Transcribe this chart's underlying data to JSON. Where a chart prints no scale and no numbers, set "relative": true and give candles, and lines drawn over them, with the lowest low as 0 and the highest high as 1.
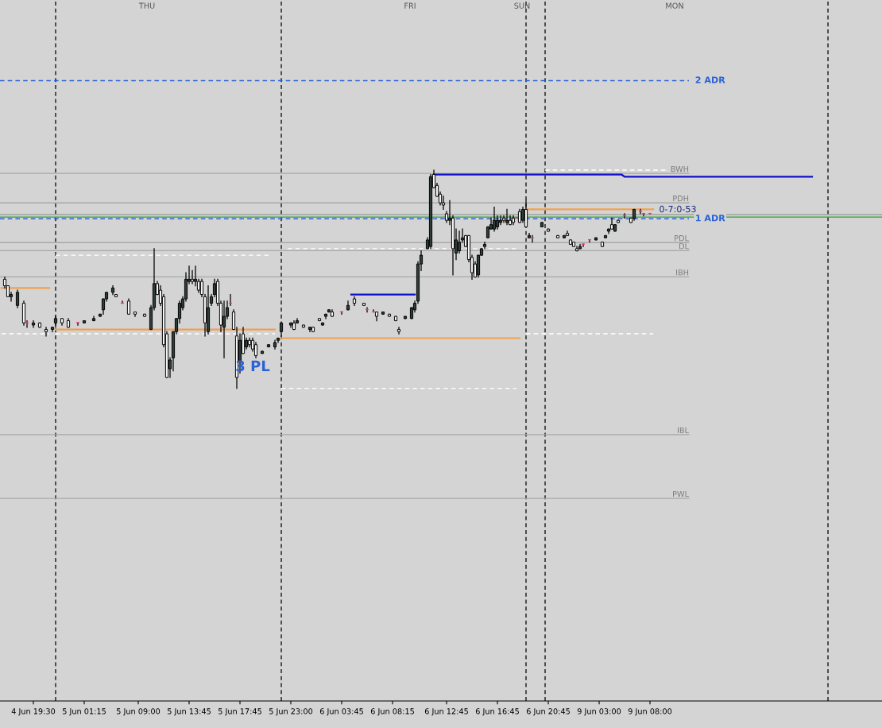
{
  "chart_data": {
    "type": "candlestick",
    "relative": true,
    "categories": [
      null,
      null,
      null,
      null,
      null,
      null,
      null,
      null,
      null,
      null,
      "4 Jun 19:30",
      null,
      null,
      null,
      null,
      null,
      null,
      null,
      null,
      null,
      null,
      null,
      null,
      null,
      null,
      null,
      "5 Jun 01:15",
      null,
      null,
      null,
      null,
      null,
      null,
      null,
      null,
      null,
      null,
      null,
      null,
      null,
      null,
      null,
      null,
      "5 Jun 09:00",
      null,
      null,
      null,
      null,
      null,
      null,
      null,
      null,
      null,
      null,
      null,
      null,
      null,
      null,
      null,
      "5 Jun 13:45",
      null,
      null,
      null,
      null,
      null,
      null,
      null,
      null,
      null,
      null,
      null,
      null,
      null,
      null,
      null,
      "5 Jun 17:45",
      null,
      null,
      null,
      null,
      null,
      null,
      null,
      null,
      null,
      null,
      null,
      null,
      null,
      null,
      null,
      "5 Jun 23:00",
      null,
      null,
      null,
      null,
      null,
      null,
      null,
      null,
      null,
      null,
      null,
      null,
      null,
      null,
      null,
      "6 Jun 03:45",
      null,
      null,
      null,
      null,
      null,
      null,
      null,
      null,
      null,
      null,
      null,
      null,
      null,
      null,
      null,
      "6 Jun 08:15",
      null,
      null,
      null,
      null,
      null,
      null,
      null,
      null,
      null,
      null,
      null,
      null,
      null,
      null,
      null,
      null,
      "6 Jun 12:45",
      null,
      null,
      null,
      null,
      null,
      null,
      null,
      null,
      null,
      null,
      null,
      null,
      null,
      null,
      null,
      "6 Jun 16:45",
      null,
      null,
      null,
      null,
      null,
      null,
      null,
      null,
      null,
      null,
      null,
      null,
      null,
      null,
      null,
      "6 Jun 20:45",
      null,
      null,
      null,
      null,
      null,
      null,
      null,
      null,
      null,
      null,
      null,
      null,
      null,
      null,
      null,
      "9 Jun 03:00",
      null,
      null,
      null,
      null,
      null,
      null,
      null,
      null,
      null,
      null,
      null,
      null,
      null,
      null,
      null,
      "9 Jun 08:00",
      null,
      null,
      null,
      null,
      null,
      null,
      null,
      null,
      null,
      null,
      null,
      null,
      null,
      null,
      null,
      null,
      null,
      null,
      null,
      null,
      null,
      null,
      null,
      null,
      null,
      null,
      null,
      null,
      null,
      null,
      null,
      null,
      null,
      null,
      null,
      null,
      null,
      null,
      null,
      null,
      null,
      null,
      null,
      null,
      null,
      null,
      null,
      null,
      null,
      null,
      null,
      null,
      null,
      null,
      null,
      null
    ],
    "ohlc": [
      null,
      [
        0.5,
        0.51,
        0.46,
        0.47
      ],
      [
        0.47,
        0.47,
        0.42,
        0.42
      ],
      [
        0.42,
        0.44,
        0.4,
        0.43
      ],
      null,
      [
        0.38,
        0.45,
        0.37,
        0.44
      ],
      null,
      [
        0.39,
        0.4,
        0.29,
        0.3
      ],
      [
        0.3,
        0.31,
        0.28,
        0.3
      ],
      null,
      [
        0.29,
        0.31,
        0.28,
        0.3
      ],
      null,
      [
        0.3,
        0.3,
        0.28,
        0.28
      ],
      null,
      [
        0.27,
        0.28,
        0.24,
        0.26
      ],
      null,
      [
        0.27,
        0.28,
        0.26,
        0.28
      ],
      [
        0.3,
        0.33,
        0.28,
        0.32
      ],
      null,
      [
        0.32,
        0.32,
        0.29,
        0.3
      ],
      null,
      [
        0.31,
        0.32,
        0.28,
        0.28
      ],
      null,
      null,
      [
        0.3,
        0.3,
        0.29,
        0.3
      ],
      null,
      [
        0.3,
        0.31,
        0.3,
        0.31
      ],
      null,
      null,
      [
        0.31,
        0.33,
        0.31,
        0.32
      ],
      null,
      [
        0.33,
        0.34,
        0.33,
        0.34
      ],
      [
        0.36,
        0.41,
        0.34,
        0.41
      ],
      [
        0.41,
        0.44,
        0.4,
        0.44
      ],
      null,
      [
        0.44,
        0.47,
        0.43,
        0.46
      ],
      [
        0.43,
        0.43,
        0.42,
        0.42
      ],
      null,
      [
        0.39,
        0.4,
        0.39,
        0.39
      ],
      null,
      [
        0.4,
        0.41,
        0.34,
        0.34
      ],
      null,
      [
        0.35,
        0.35,
        0.33,
        0.34
      ],
      null,
      null,
      [
        0.34,
        0.34,
        0.33,
        0.33
      ],
      null,
      [
        0.27,
        0.38,
        0.27,
        0.37
      ],
      [
        0.37,
        0.64,
        0.36,
        0.48
      ],
      [
        0.48,
        0.49,
        0.43,
        0.43
      ],
      [
        0.45,
        0.47,
        0.38,
        0.39
      ],
      [
        0.42,
        0.43,
        0.19,
        0.2
      ],
      [
        0.25,
        0.26,
        0.05,
        0.05
      ],
      [
        0.09,
        0.14,
        0.05,
        0.13
      ],
      [
        0.14,
        0.26,
        0.08,
        0.26
      ],
      [
        0.26,
        0.32,
        0.25,
        0.32
      ],
      [
        0.32,
        0.4,
        0.3,
        0.39
      ],
      [
        0.37,
        0.42,
        0.36,
        0.41
      ],
      [
        0.41,
        0.53,
        0.4,
        0.5
      ],
      [
        0.49,
        0.56,
        0.48,
        0.5
      ],
      [
        0.5,
        0.54,
        0.48,
        0.49
      ],
      [
        0.49,
        0.56,
        0.47,
        0.5
      ],
      [
        0.49,
        0.5,
        0.44,
        0.45
      ],
      [
        0.49,
        0.5,
        0.42,
        0.43
      ],
      [
        0.42,
        0.43,
        0.24,
        0.3
      ],
      [
        0.26,
        0.47,
        0.25,
        0.37
      ],
      [
        0.39,
        0.43,
        0.38,
        0.42
      ],
      [
        0.43,
        0.5,
        0.42,
        0.48
      ],
      [
        0.49,
        0.5,
        0.38,
        0.39
      ],
      [
        0.39,
        0.4,
        0.26,
        0.29
      ],
      [
        0.28,
        0.4,
        0.14,
        0.33
      ],
      [
        0.33,
        0.4,
        0.32,
        0.37
      ],
      [
        0.39,
        0.43,
        0.38,
        0.39
      ],
      [
        0.35,
        0.36,
        0.27,
        0.27
      ],
      [
        0.24,
        0.28,
        0.0,
        0.05
      ],
      [
        0.12,
        0.25,
        0.07,
        0.22
      ],
      [
        0.25,
        0.28,
        0.16,
        0.16
      ],
      [
        0.19,
        0.23,
        0.18,
        0.22
      ],
      [
        0.22,
        0.23,
        0.19,
        0.2
      ],
      [
        0.22,
        0.23,
        0.17,
        0.18
      ],
      [
        0.2,
        0.21,
        0.14,
        0.15
      ],
      null,
      [
        0.16,
        0.17,
        0.16,
        0.17
      ],
      null,
      [
        0.19,
        0.2,
        0.19,
        0.2
      ],
      null,
      [
        0.19,
        0.22,
        0.18,
        0.21
      ],
      [
        0.22,
        0.23,
        0.21,
        0.23
      ],
      [
        0.26,
        0.3,
        0.24,
        0.3
      ],
      null,
      null,
      [
        0.29,
        0.3,
        0.28,
        0.3
      ],
      [
        0.3,
        0.31,
        0.27,
        0.27
      ],
      [
        0.3,
        0.32,
        0.3,
        0.31
      ],
      null,
      [
        0.29,
        0.29,
        0.28,
        0.28
      ],
      null,
      [
        0.27,
        0.28,
        0.26,
        0.28
      ],
      [
        0.28,
        0.28,
        0.26,
        0.26
      ],
      null,
      [
        0.32,
        0.32,
        0.31,
        0.31
      ],
      [
        0.29,
        0.3,
        0.29,
        0.3
      ],
      [
        0.33,
        0.34,
        0.32,
        0.34
      ],
      [
        0.35,
        0.36,
        0.35,
        0.36
      ],
      [
        0.35,
        0.36,
        0.33,
        0.33
      ],
      null,
      null,
      [
        0.35,
        0.35,
        0.34,
        0.35
      ],
      null,
      [
        0.36,
        0.4,
        0.36,
        0.38
      ],
      null,
      [
        0.41,
        0.42,
        0.38,
        0.39
      ],
      null,
      null,
      [
        0.39,
        0.39,
        0.38,
        0.38
      ],
      [
        0.36,
        0.37,
        0.35,
        0.36
      ],
      null,
      [
        0.35,
        0.36,
        0.35,
        0.35
      ],
      [
        0.35,
        0.35,
        0.31,
        0.33
      ],
      null,
      [
        0.34,
        0.35,
        0.34,
        0.35
      ],
      null,
      [
        0.34,
        0.34,
        0.33,
        0.33
      ],
      null,
      [
        0.33,
        0.33,
        0.31,
        0.31
      ],
      [
        0.27,
        0.28,
        0.25,
        0.26
      ],
      null,
      [
        0.32,
        0.33,
        0.32,
        0.33
      ],
      null,
      [
        0.32,
        0.37,
        0.32,
        0.37
      ],
      [
        0.36,
        0.4,
        0.35,
        0.39
      ],
      [
        0.4,
        0.58,
        0.39,
        0.57
      ],
      [
        0.57,
        0.63,
        0.54,
        0.61
      ],
      null,
      [
        0.64,
        0.69,
        0.64,
        0.68
      ],
      [
        0.65,
        0.98,
        0.64,
        0.97
      ],
      [
        0.98,
        1.0,
        0.92,
        0.92
      ],
      [
        0.93,
        0.94,
        0.88,
        0.88
      ],
      [
        0.89,
        0.9,
        0.84,
        0.85
      ],
      [
        0.85,
        0.88,
        0.82,
        0.84
      ],
      [
        0.8,
        0.81,
        0.76,
        0.77
      ],
      [
        0.77,
        0.86,
        0.75,
        0.78
      ],
      [
        0.78,
        0.79,
        0.52,
        0.64
      ],
      [
        0.62,
        0.73,
        0.59,
        0.68
      ],
      [
        0.63,
        0.72,
        0.62,
        0.67
      ],
      [
        0.68,
        0.73,
        0.67,
        0.69
      ],
      [
        0.7,
        0.7,
        0.65,
        0.65
      ],
      [
        0.7,
        0.7,
        0.58,
        0.59
      ],
      [
        0.6,
        0.61,
        0.5,
        0.53
      ],
      [
        0.57,
        0.58,
        0.51,
        0.51
      ],
      [
        0.52,
        0.61,
        0.51,
        0.61
      ],
      [
        0.61,
        0.64,
        0.61,
        0.64
      ],
      [
        0.65,
        0.67,
        0.64,
        0.66
      ],
      [
        0.69,
        0.74,
        0.69,
        0.74
      ],
      [
        0.73,
        0.78,
        0.73,
        0.75
      ],
      [
        0.73,
        0.83,
        0.72,
        0.77
      ],
      [
        0.74,
        0.79,
        0.73,
        0.77
      ],
      [
        0.76,
        0.79,
        0.75,
        0.77
      ],
      [
        0.78,
        0.79,
        0.76,
        0.77
      ],
      [
        0.76,
        0.82,
        0.75,
        0.77
      ],
      [
        0.77,
        0.79,
        0.75,
        0.75
      ],
      [
        0.78,
        0.79,
        0.75,
        0.76
      ],
      [
        0.78,
        0.78,
        0.78,
        0.78
      ],
      [
        0.81,
        0.82,
        0.76,
        0.76
      ],
      [
        0.77,
        0.83,
        0.76,
        0.82
      ],
      [
        0.82,
        0.86,
        0.74,
        0.74
      ],
      [
        0.69,
        0.71,
        0.69,
        0.7
      ],
      [
        0.69,
        0.7,
        0.67,
        0.69
      ],
      null,
      null,
      [
        0.74,
        0.76,
        0.74,
        0.76
      ],
      null,
      [
        0.73,
        0.73,
        0.72,
        0.72
      ],
      null,
      null,
      [
        0.7,
        0.7,
        0.69,
        0.69
      ],
      null,
      [
        0.69,
        0.7,
        0.69,
        0.7
      ],
      [
        0.71,
        0.72,
        0.7,
        0.7
      ],
      [
        0.68,
        0.68,
        0.66,
        0.66
      ],
      [
        0.67,
        0.67,
        0.65,
        0.65
      ],
      [
        0.64,
        0.65,
        0.63,
        0.63
      ],
      [
        0.64,
        0.66,
        0.64,
        0.65
      ],
      [
        0.66,
        0.66,
        0.65,
        0.66
      ],
      null,
      [
        0.68,
        0.68,
        0.67,
        0.68
      ],
      null,
      [
        0.68,
        0.69,
        0.68,
        0.69
      ],
      null,
      [
        0.67,
        0.67,
        0.65,
        0.65
      ],
      [
        0.69,
        0.7,
        0.69,
        0.7
      ],
      [
        0.72,
        0.73,
        0.71,
        0.73
      ],
      [
        0.75,
        0.78,
        0.73,
        0.73
      ],
      [
        0.72,
        0.75,
        0.72,
        0.75
      ],
      [
        0.77,
        0.77,
        0.76,
        0.76
      ],
      null,
      [
        0.79,
        0.8,
        0.78,
        0.79
      ],
      null,
      [
        0.78,
        0.78,
        0.76,
        0.76
      ],
      [
        0.78,
        0.82,
        0.77,
        0.82
      ],
      null,
      [
        0.81,
        0.82,
        0.8,
        0.81
      ],
      [
        0.8,
        0.8,
        0.79,
        0.8
      ],
      null,
      [
        0.8,
        0.8,
        0.8,
        0.8
      ],
      null,
      null,
      null,
      null,
      null,
      null,
      null,
      null,
      null,
      null,
      null,
      null,
      null,
      null,
      null,
      null,
      null,
      null,
      null,
      null,
      null,
      null,
      null,
      null,
      null,
      null,
      null,
      null,
      null,
      null,
      null,
      null,
      null,
      null,
      null,
      null,
      null,
      null,
      null,
      null,
      null,
      null,
      null,
      null,
      null,
      null,
      null,
      null,
      null,
      null,
      null,
      null,
      null,
      null,
      null,
      null
    ],
    "colors": [
      null,
      "#f4f4f4",
      "#f4f4f4",
      "#2f3d36",
      null,
      "#2f3d36",
      null,
      "#f4f4f4",
      "#e0407a",
      null,
      "#2f3d36",
      null,
      "#f4f4f4",
      null,
      "#f4f4f4",
      null,
      "#2f3d36",
      "#2f3d36",
      null,
      "#f4f4f4",
      null,
      "#f4f4f4",
      null,
      null,
      "#e0407a",
      null,
      "#2f3d36",
      null,
      null,
      "#2f3d36",
      null,
      "#2f3d36",
      "#2f3d36",
      "#2f3d36",
      null,
      "#2f3d36",
      "#f4f4f4",
      null,
      "#e0407a",
      null,
      "#f4f4f4",
      null,
      "#f4f4f4",
      null,
      null,
      "#f4f4f4",
      null,
      "#2f3d36",
      "#2f3d36",
      "#f4f4f4",
      "#f4f4f4",
      "#f4f4f4",
      "#f4f4f4",
      "#2f3d36",
      "#2f3d36",
      "#2f3d36",
      "#2f3d36",
      "#2f3d36",
      "#2f3d36",
      "#2f3d36",
      "#f4f4f4",
      "#2f3d36",
      "#f4f4f4",
      "#f4f4f4",
      "#f4f4f4",
      "#2f3d36",
      "#2f3d36",
      "#2f3d36",
      "#f4f4f4",
      "#f4f4f4",
      "#2f3d36",
      "#2f3d36",
      "#e0407a",
      "#f4f4f4",
      "#f4f4f4",
      "#2f3d36",
      "#f4f4f4",
      "#2f3d36",
      "#f4f4f4",
      "#f4f4f4",
      "#f4f4f4",
      null,
      "#2f3d36",
      null,
      "#2f3d36",
      null,
      "#2f3d36",
      "#2f3d36",
      "#2f3d36",
      null,
      null,
      "#2f3d36",
      "#f4f4f4",
      "#2f3d36",
      null,
      "#f4f4f4",
      null,
      "#2f3d36",
      "#f4f4f4",
      null,
      "#f4f4f4",
      "#2f3d36",
      "#2f3d36",
      "#2f3d36",
      "#f4f4f4",
      null,
      null,
      "#e0407a",
      null,
      "#2f3d36",
      null,
      "#f4f4f4",
      null,
      null,
      "#f4f4f4",
      "#e0407a",
      null,
      "#e0407a",
      "#f4f4f4",
      null,
      "#2f3d36",
      null,
      "#f4f4f4",
      null,
      "#f4f4f4",
      "#f4f4f4",
      null,
      "#2f3d36",
      null,
      "#2f3d36",
      "#2f3d36",
      "#2f3d36",
      "#2f3d36",
      null,
      "#2f3d36",
      "#2f3d36",
      "#f4f4f4",
      "#f4f4f4",
      "#f4f4f4",
      "#f4f4f4",
      "#f4f4f4",
      "#2f3d36",
      "#f4f4f4",
      "#2f3d36",
      "#2f3d36",
      "#2f3d36",
      "#f4f4f4",
      "#f4f4f4",
      "#f4f4f4",
      "#f4f4f4",
      "#2f3d36",
      "#2f3d36",
      "#2f3d36",
      "#2f3d36",
      "#2f3d36",
      "#2f3d36",
      "#2f3d36",
      "#2f3d36",
      "#f4f4f4",
      "#2f3d36",
      "#f4f4f4",
      "#f4f4f4",
      "#e0407a",
      "#f4f4f4",
      "#2f3d36",
      "#f4f4f4",
      "#2f3d36",
      "#e0407a",
      null,
      null,
      "#2f3d36",
      null,
      "#f4f4f4",
      null,
      null,
      "#f4f4f4",
      null,
      "#2f3d36",
      "#f4f4f4",
      "#f4f4f4",
      "#f4f4f4",
      "#f4f4f4",
      "#2f3d36",
      "#e0407a",
      null,
      "#e0407a",
      null,
      "#2f3d36",
      null,
      "#f4f4f4",
      "#2f3d36",
      "#2f3d36",
      "#f4f4f4",
      "#2f3d36",
      "#f4f4f4",
      null,
      "#e0407a",
      null,
      "#f4f4f4",
      "#2f3d36",
      null,
      "#e0407a",
      "#e0407a",
      null,
      "#e0407a",
      null,
      null,
      null,
      null,
      null,
      null,
      null,
      null,
      null,
      null,
      null,
      null,
      null,
      null,
      null,
      null,
      null,
      null,
      null,
      null,
      null,
      null,
      null,
      null,
      null,
      null,
      null,
      null,
      null,
      null,
      null,
      null,
      null,
      null,
      null,
      null,
      null,
      null,
      null,
      null,
      null,
      null,
      null,
      null,
      null,
      null,
      null,
      null,
      null,
      null,
      null,
      null,
      null,
      null,
      null,
      null
    ],
    "ref_lines": [
      {
        "axis": "y",
        "value": 1.41,
        "label": "2 ADR",
        "color": "#2a62d8",
        "line_style": "dashed"
      },
      {
        "axis": "y",
        "value": 0.777,
        "label": "1 ADR",
        "color": "#2a62d8",
        "line_style": "dashed"
      },
      {
        "axis": "y",
        "value": 0.985,
        "label": "BWH",
        "color": "#a8a8a8",
        "line_style": "solid"
      },
      {
        "axis": "y",
        "value": 0.85,
        "label": "PDH",
        "color": "#a8a8a8",
        "line_style": "solid"
      },
      {
        "axis": "y",
        "value": 0.668,
        "label": "PDL",
        "color": "#a8a8a8",
        "line_style": "solid"
      },
      {
        "axis": "y",
        "value": 0.631,
        "label": "DL",
        "color": "#a8a8a8",
        "line_style": "solid"
      },
      {
        "axis": "y",
        "value": 0.511,
        "label": "IBH",
        "color": "#a8a8a8",
        "line_style": "solid"
      },
      {
        "axis": "y",
        "value": -0.212,
        "label": "IBL",
        "color": "#a8a8a8",
        "line_style": "solid"
      },
      {
        "axis": "y",
        "value": -0.504,
        "label": "PWL",
        "color": "#a8a8a8",
        "line_style": "solid"
      },
      {
        "axis": "y",
        "value": 0.796,
        "color": "#a0a0a0",
        "line_style": "solid"
      },
      {
        "axis": "y",
        "value": 0.785,
        "color": "#2ca02c",
        "line_style": "solid"
      }
    ],
    "series": [
      {
        "type": "line",
        "color": "#f0a050",
        "values": [
          0.46,
          0.46,
          0.46,
          0.46,
          0.46,
          0.46,
          0.46,
          0.46,
          0.46,
          0.46,
          0.46,
          0.46,
          0.46,
          0.46,
          0.46,
          0.46,
          null,
          0.27,
          0.27,
          0.27,
          0.27,
          0.27,
          0.27,
          0.27,
          0.27,
          0.27,
          0.27,
          0.27,
          0.27,
          0.27,
          0.27,
          0.27,
          0.27,
          0.27,
          0.27,
          0.27,
          0.27,
          0.27,
          0.27,
          0.27,
          0.27,
          0.27,
          0.27,
          0.27,
          0.27,
          0.27,
          0.27,
          0.27,
          0.27,
          0.27,
          0.27,
          0.27,
          0.27,
          0.27,
          0.27,
          0.27,
          0.27,
          0.27,
          0.27,
          0.27,
          0.27,
          0.27,
          0.27,
          0.27,
          0.27,
          0.27,
          0.27,
          0.27,
          0.27,
          0.27,
          0.27,
          0.27,
          0.27,
          0.27,
          0.27,
          0.27,
          0.27,
          0.27,
          0.27,
          0.27,
          0.27,
          0.27,
          0.27,
          0.27,
          0.27,
          0.27,
          0.27,
          null,
          0.23,
          0.23,
          0.23,
          0.23,
          0.23,
          0.23,
          0.23,
          0.23,
          0.23,
          0.23,
          0.23,
          0.23,
          0.23,
          0.23,
          0.23,
          0.23,
          0.23,
          0.23,
          0.23,
          0.23,
          0.23,
          0.23,
          0.23,
          0.23,
          0.23,
          0.23,
          0.23,
          0.23,
          0.23,
          0.23,
          0.23,
          0.23,
          0.23,
          0.23,
          0.23,
          0.23,
          0.23,
          0.23,
          0.23,
          0.23,
          0.23,
          0.23,
          0.23,
          0.23,
          0.23,
          0.23,
          0.23,
          0.23,
          0.23,
          0.23,
          0.23,
          0.23,
          0.23,
          0.23,
          0.23,
          0.23,
          0.23,
          0.23,
          0.23,
          0.23,
          0.23,
          0.23,
          0.23,
          0.23,
          0.23,
          0.23,
          0.23,
          0.23,
          0.23,
          0.23,
          0.23,
          0.23,
          0.23,
          0.23,
          0.23,
          0.23,
          null,
          0.82,
          0.82,
          0.82,
          0.82,
          0.82,
          0.82,
          0.82,
          0.82,
          0.82,
          0.82,
          0.82,
          0.82,
          0.82,
          0.82,
          0.82,
          0.82,
          0.82,
          0.82,
          0.82,
          0.82,
          0.82,
          0.82,
          0.82,
          0.82,
          0.82,
          0.82,
          0.82,
          0.82,
          0.82,
          0.82,
          0.82,
          0.82,
          0.82,
          0.82,
          0.82,
          0.82,
          0.82,
          0.82,
          0.82,
          0.82,
          0.82,
          null,
          null,
          null,
          null,
          null,
          null,
          null,
          null,
          null,
          null,
          null,
          null,
          null,
          null,
          null,
          null,
          null,
          null,
          null,
          null,
          null,
          null,
          null,
          null,
          null,
          null,
          null,
          null,
          null,
          null,
          null,
          null,
          null,
          null,
          null,
          null,
          null,
          null,
          null,
          null,
          null,
          null,
          null,
          null,
          null,
          null,
          null,
          null,
          null,
          null,
          null,
          null,
          null,
          null,
          null
        ]
      },
      {
        "type": "line",
        "color": "#1010c8",
        "values": [
          null,
          null,
          null,
          null,
          null,
          null,
          null,
          null,
          null,
          null,
          null,
          null,
          null,
          null,
          null,
          null,
          null,
          null,
          null,
          null,
          null,
          null,
          null,
          null,
          null,
          null,
          null,
          null,
          null,
          null,
          null,
          null,
          null,
          null,
          null,
          null,
          null,
          null,
          null,
          null,
          null,
          null,
          null,
          null,
          null,
          null,
          null,
          null,
          null,
          null,
          null,
          null,
          null,
          null,
          null,
          null,
          null,
          null,
          null,
          null,
          null,
          null,
          null,
          null,
          null,
          null,
          null,
          null,
          null,
          null,
          null,
          null,
          null,
          null,
          null,
          null,
          null,
          null,
          null,
          null,
          null,
          null,
          null,
          null,
          null,
          null,
          null,
          null,
          null,
          null,
          null,
          null,
          null,
          null,
          null,
          null,
          null,
          null,
          null,
          null,
          null,
          null,
          null,
          null,
          null,
          null,
          null,
          null,
          null,
          null,
          0.43,
          0.43,
          0.43,
          0.43,
          0.43,
          0.43,
          0.43,
          0.43,
          0.43,
          0.43,
          0.43,
          0.43,
          0.43,
          0.43,
          0.43,
          0.43,
          0.43,
          0.43,
          0.43,
          0.43,
          0.43,
          null,
          null,
          null,
          null,
          null,
          0.98,
          0.98,
          0.98,
          0.98,
          0.98,
          0.98,
          0.98,
          0.98,
          0.98,
          0.98,
          0.98,
          0.98,
          0.98,
          0.98,
          0.98,
          0.98,
          0.98,
          0.98,
          0.98,
          0.98,
          0.98,
          0.98,
          0.98,
          0.98,
          0.98,
          0.98,
          0.98,
          0.98,
          0.98,
          0.98,
          0.98,
          0.98,
          0.98,
          0.98,
          0.98,
          0.98,
          0.98,
          0.98,
          0.98,
          0.98,
          0.98,
          0.98,
          0.98,
          0.98,
          0.98,
          0.98,
          0.98,
          0.98,
          0.98,
          0.98,
          0.98,
          0.98,
          0.98,
          0.98,
          0.98,
          0.98,
          0.98,
          0.98,
          0.98,
          0.98,
          0.97,
          0.97,
          0.97,
          0.97,
          0.97,
          0.97,
          0.97,
          0.97,
          0.97,
          0.97,
          0.97,
          0.97,
          0.97,
          0.97,
          0.97,
          0.97,
          0.97,
          0.97,
          0.97,
          0.97,
          0.97,
          0.97,
          0.97,
          0.97,
          0.97,
          0.97,
          0.97,
          0.97,
          0.97,
          0.97,
          0.97,
          0.97,
          0.97,
          0.97,
          0.97,
          0.97,
          0.97,
          0.97,
          0.97,
          0.97,
          0.97,
          0.97,
          0.97,
          0.97,
          0.97,
          0.97,
          0.97,
          0.97,
          0.97,
          0.97,
          0.97,
          0.97,
          0.97,
          0.97,
          0.97,
          0.97,
          0.97,
          0.97,
          0.97,
          0.97,
          null,
          null,
          null,
          null,
          null
        ]
      },
      {
        "type": "line",
        "color": "#ffffff",
        "line_style": "dashed",
        "values": [
          0.25,
          0.25,
          0.25,
          0.25,
          0.25,
          0.25,
          0.25,
          0.25,
          0.25,
          0.25,
          0.25,
          0.25,
          0.25,
          0.25,
          0.25,
          0.25,
          null,
          0.61,
          0.61,
          0.61,
          0.61,
          0.61,
          0.61,
          0.61,
          0.61,
          0.61,
          0.61,
          0.61,
          0.61,
          0.61,
          0.61,
          0.61,
          0.61,
          0.61,
          0.61,
          0.61,
          0.61,
          0.61,
          0.61,
          0.61,
          0.61,
          0.61,
          0.61,
          0.61,
          0.61,
          0.61,
          0.61,
          0.61,
          0.61,
          0.61,
          0.61,
          0.61,
          0.61,
          0.61,
          0.61,
          0.61,
          0.61,
          0.61,
          0.61,
          0.61,
          0.61,
          0.61,
          0.61,
          0.61,
          0.61,
          0.61,
          0.61,
          0.61,
          0.61,
          0.61,
          0.61,
          0.61,
          0.61,
          0.61,
          0.61,
          0.61,
          0.61,
          0.61,
          0.61,
          0.61,
          0.61,
          0.61,
          0.61,
          0.61,
          0.61,
          0.61,
          null,
          null,
          null,
          null,
          0.64,
          0.64,
          0.64,
          0.64,
          0.64,
          0.64,
          0.64,
          0.64,
          0.64,
          0.64,
          0.64,
          0.64,
          0.64,
          0.64,
          0.64,
          0.64,
          0.64,
          0.64,
          0.64,
          0.64,
          0.64,
          0.64,
          0.64,
          0.64,
          0.64,
          0.64,
          0.64,
          0.64,
          0.64,
          0.64,
          0.64,
          0.64,
          0.64,
          0.64,
          0.64,
          0.64,
          0.64,
          0.64,
          0.64,
          0.64,
          0.64,
          0.64,
          0.64,
          0.64,
          0.64,
          0.64,
          0.64,
          0.64,
          0.64,
          0.64,
          0.64,
          0.64,
          0.64,
          0.64,
          0.64,
          0.64,
          0.64,
          0.64,
          0.64,
          0.64,
          0.64,
          0.64,
          0.64,
          0.64,
          0.64,
          0.64,
          0.64,
          0.64,
          0.64,
          0.64,
          0.64,
          0.64,
          0.64,
          null,
          null,
          0.25,
          0.25,
          0.25,
          0.25,
          0.25,
          0.25,
          0.25,
          0.25,
          0.25,
          0.25,
          0.25,
          0.25,
          0.25,
          0.25,
          0.25,
          0.25,
          0.25,
          0.25,
          0.25,
          0.25,
          0.25,
          0.25,
          0.25,
          0.25,
          0.25,
          0.25,
          0.25,
          0.25,
          0.25,
          0.25,
          0.25,
          0.25,
          0.25,
          0.25,
          0.25,
          0.25,
          0.25,
          0.25,
          0.25,
          0.25,
          0.25,
          null,
          null,
          null,
          null,
          null,
          null,
          null,
          null,
          null,
          null,
          null,
          null,
          null,
          null,
          null,
          null,
          null,
          null,
          null,
          null,
          null,
          null,
          null,
          null,
          null,
          null,
          null,
          null,
          null,
          null,
          null,
          null,
          null,
          null,
          null,
          null,
          null,
          null,
          null,
          null,
          null,
          null,
          null,
          null,
          null,
          null,
          null,
          null,
          null,
          null,
          null,
          null,
          null,
          null,
          null
        ]
      },
      {
        "type": "line",
        "color": "#ffffff",
        "line_style": "dashed",
        "values": [
          null,
          null,
          null,
          null,
          null,
          null,
          null,
          null,
          null,
          null,
          null,
          null,
          null,
          null,
          null,
          null,
          null,
          0.25,
          0.25,
          0.25,
          0.25,
          0.25,
          0.25,
          0.25,
          0.25,
          0.25,
          0.25,
          0.25,
          0.25,
          0.25,
          0.25,
          0.25,
          0.25,
          0.25,
          0.25,
          0.25,
          0.25,
          0.25,
          0.25,
          0.25,
          0.25,
          0.25,
          0.25,
          0.25,
          0.25,
          0.25,
          0.25,
          0.25,
          0.25,
          0.25,
          0.25,
          0.25,
          0.25,
          0.25,
          0.25,
          0.25,
          0.25,
          0.25,
          0.25,
          0.25,
          0.25,
          0.25,
          0.25,
          0.25,
          0.25,
          0.25,
          0.25,
          0.25,
          0.25,
          0.25,
          0.25,
          0.25,
          0.25,
          0.25,
          0.25,
          0.25,
          0.25,
          0.25,
          0.25,
          0.25,
          0.25,
          0.25,
          0.25,
          0.25,
          0.25,
          0.25,
          0.25,
          null,
          0,
          0,
          0,
          0,
          0,
          0,
          0,
          0,
          0,
          0,
          0,
          0,
          0,
          0,
          0,
          0,
          0,
          0,
          0,
          0,
          0,
          0,
          0,
          0,
          0,
          0,
          0,
          0,
          0,
          0,
          0,
          0,
          0,
          0,
          0,
          0,
          0,
          0,
          0,
          0,
          0,
          0,
          0,
          0,
          0,
          0,
          0,
          0,
          0,
          0,
          0,
          0,
          0,
          0,
          0,
          0,
          0,
          0,
          0,
          0,
          0,
          0,
          0,
          0,
          0,
          0,
          0,
          0,
          0,
          0,
          0,
          0,
          0,
          0,
          0,
          null,
          null,
          null,
          null,
          null,
          null,
          null,
          null,
          1.0,
          1.0,
          1.0,
          1.0,
          1.0,
          1.0,
          1.0,
          1.0,
          1.0,
          1.0,
          1.0,
          1.0,
          1.0,
          1.0,
          1.0,
          1.0,
          1.0,
          1.0,
          1.0,
          1.0,
          1.0,
          1.0,
          1.0,
          1.0,
          1.0,
          1.0,
          1.0,
          1.0,
          1.0,
          1.0,
          1.0,
          1.0,
          1.0,
          1.0,
          1.0,
          1.0,
          1.0,
          1.0,
          1.0,
          null,
          null,
          null,
          null,
          null,
          null,
          null,
          null,
          null,
          null,
          null,
          null,
          null,
          null,
          null,
          null,
          null,
          null,
          null,
          null,
          null,
          null,
          null,
          null,
          null,
          null,
          null,
          null,
          null,
          null,
          null,
          null,
          null,
          null,
          null,
          null,
          null,
          null,
          null,
          null,
          null,
          null,
          null,
          null,
          null,
          null,
          null,
          null,
          null,
          null,
          null
        ]
      }
    ],
    "annotations": [
      "THU",
      "FRI",
      "SUN",
      "MON",
      "3 PL",
      "0-7:0-53"
    ]
  }
}
